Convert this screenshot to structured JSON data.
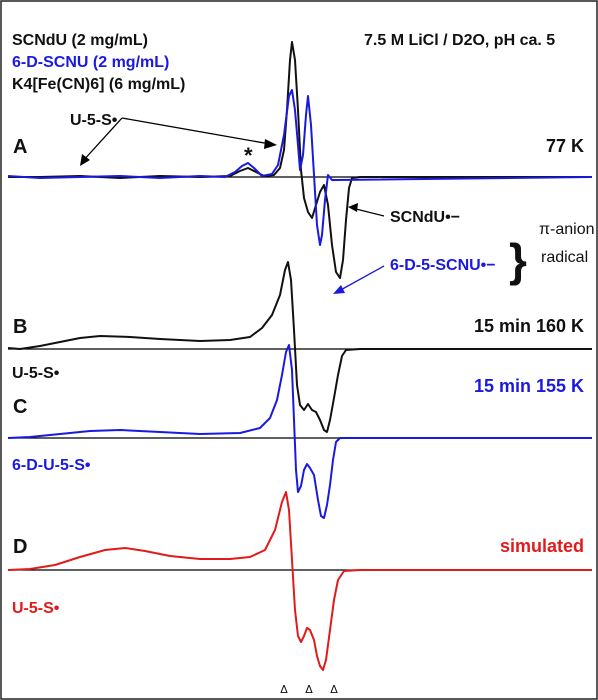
{
  "chart_data": {
    "type": "line",
    "title": "",
    "xlabel": "",
    "ylabel": "",
    "legend": {
      "placement": "top-left",
      "entries": [
        {
          "text": "SCNdU (2 mg/mL)",
          "color": "#111111"
        },
        {
          "text": "6-D-SCNU (2 mg/mL)",
          "color": "#1a1adf"
        },
        {
          "text": "K4[Fe(CN)6] (6 mg/mL)",
          "color": "#111111"
        }
      ]
    },
    "conditions": "7.5 M LiCl / D2O, pH ca. 5",
    "colors": {
      "black": "#111111",
      "blue": "#1a1adf",
      "red": "#e01b1b"
    },
    "panels": [
      {
        "letter": "A",
        "condition": "77 K",
        "species": "",
        "species_left": "U-5-S•",
        "star": "*",
        "annotations": [
          "SCNdU•−",
          "6-D-5-SCNU•−"
        ],
        "brace_label_1": "π-anion",
        "brace_label_2": "radical",
        "series": [
          {
            "name": "SCNdU (2 mg/mL)",
            "color": "#111111"
          },
          {
            "name": "6-D-SCNU (2 mg/mL)",
            "color": "#1a1adf"
          }
        ]
      },
      {
        "letter": "B",
        "condition": "15 min 160 K",
        "species": "U-5-S•",
        "series": [
          {
            "name": "SCNdU (2 mg/mL)",
            "color": "#111111"
          }
        ]
      },
      {
        "letter": "C",
        "condition": "15 min 155 K",
        "species": "6-D-U-5-S•",
        "series": [
          {
            "name": "6-D-SCNU (2 mg/mL)",
            "color": "#1a1adf"
          }
        ]
      },
      {
        "letter": "D",
        "condition": "simulated",
        "species": "U-5-S•",
        "series": [
          {
            "name": "simulated",
            "color": "#e01b1b"
          }
        ]
      }
    ],
    "markers": {
      "symbol": "Δ",
      "count": 3
    },
    "grid": false
  }
}
